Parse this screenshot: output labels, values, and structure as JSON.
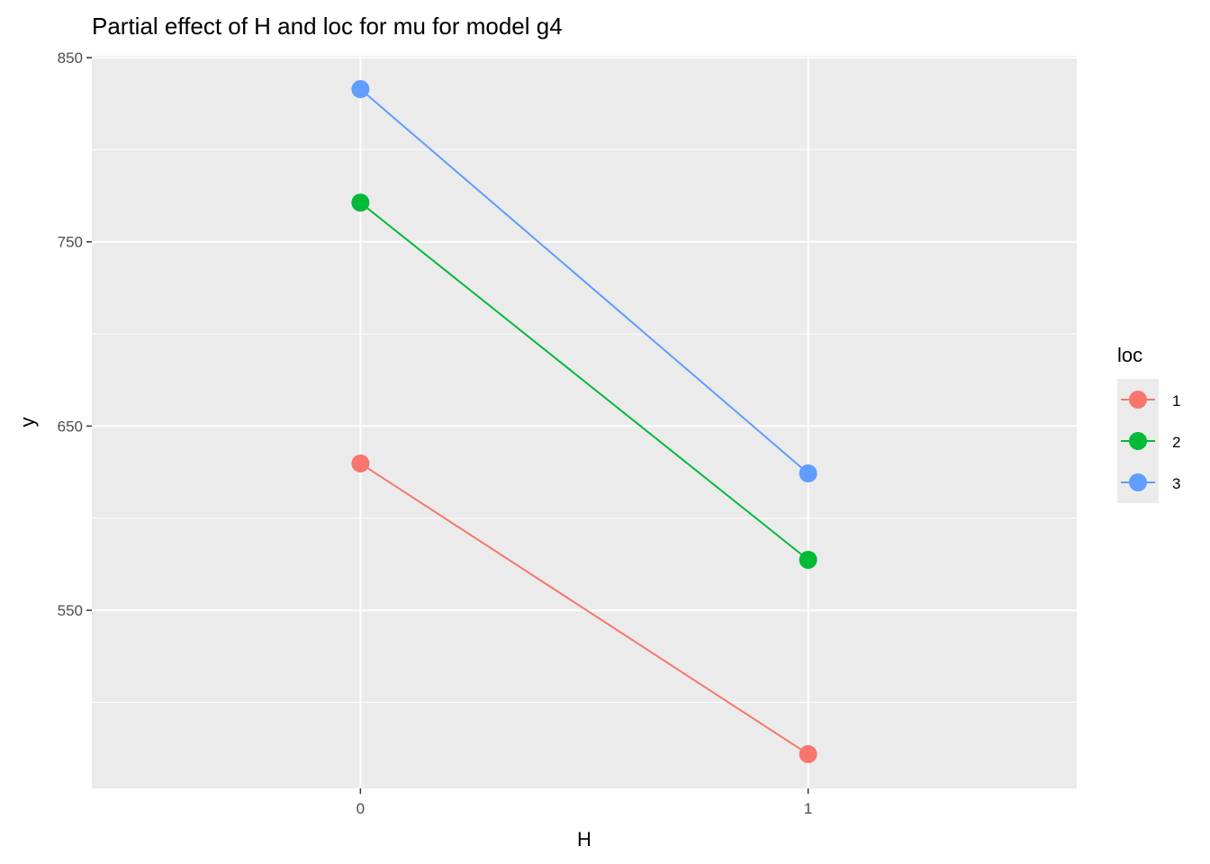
{
  "chart_data": {
    "type": "line",
    "title": "Partial effect of H and loc for mu for model g4",
    "xlabel": "H",
    "ylabel": "y",
    "x": [
      0,
      1
    ],
    "x_tick_labels": [
      "0",
      "1"
    ],
    "xlim": [
      -0.6,
      1.6
    ],
    "y_ticks": [
      550,
      650,
      750,
      850
    ],
    "y_tick_labels": [
      "550",
      "650",
      "750",
      "850"
    ],
    "ylim": [
      453.3,
      851
    ],
    "grid": true,
    "legend": {
      "title": "loc",
      "placement": "right",
      "entries": [
        "1",
        "2",
        "3"
      ]
    },
    "series": [
      {
        "name": "1",
        "color": "#F8766D",
        "values": [
          629.7,
          471.9
        ]
      },
      {
        "name": "2",
        "color": "#00BA38",
        "values": [
          771.3,
          577.4
        ]
      },
      {
        "name": "3",
        "color": "#619CFF",
        "values": [
          832.9,
          624.3
        ]
      }
    ]
  }
}
